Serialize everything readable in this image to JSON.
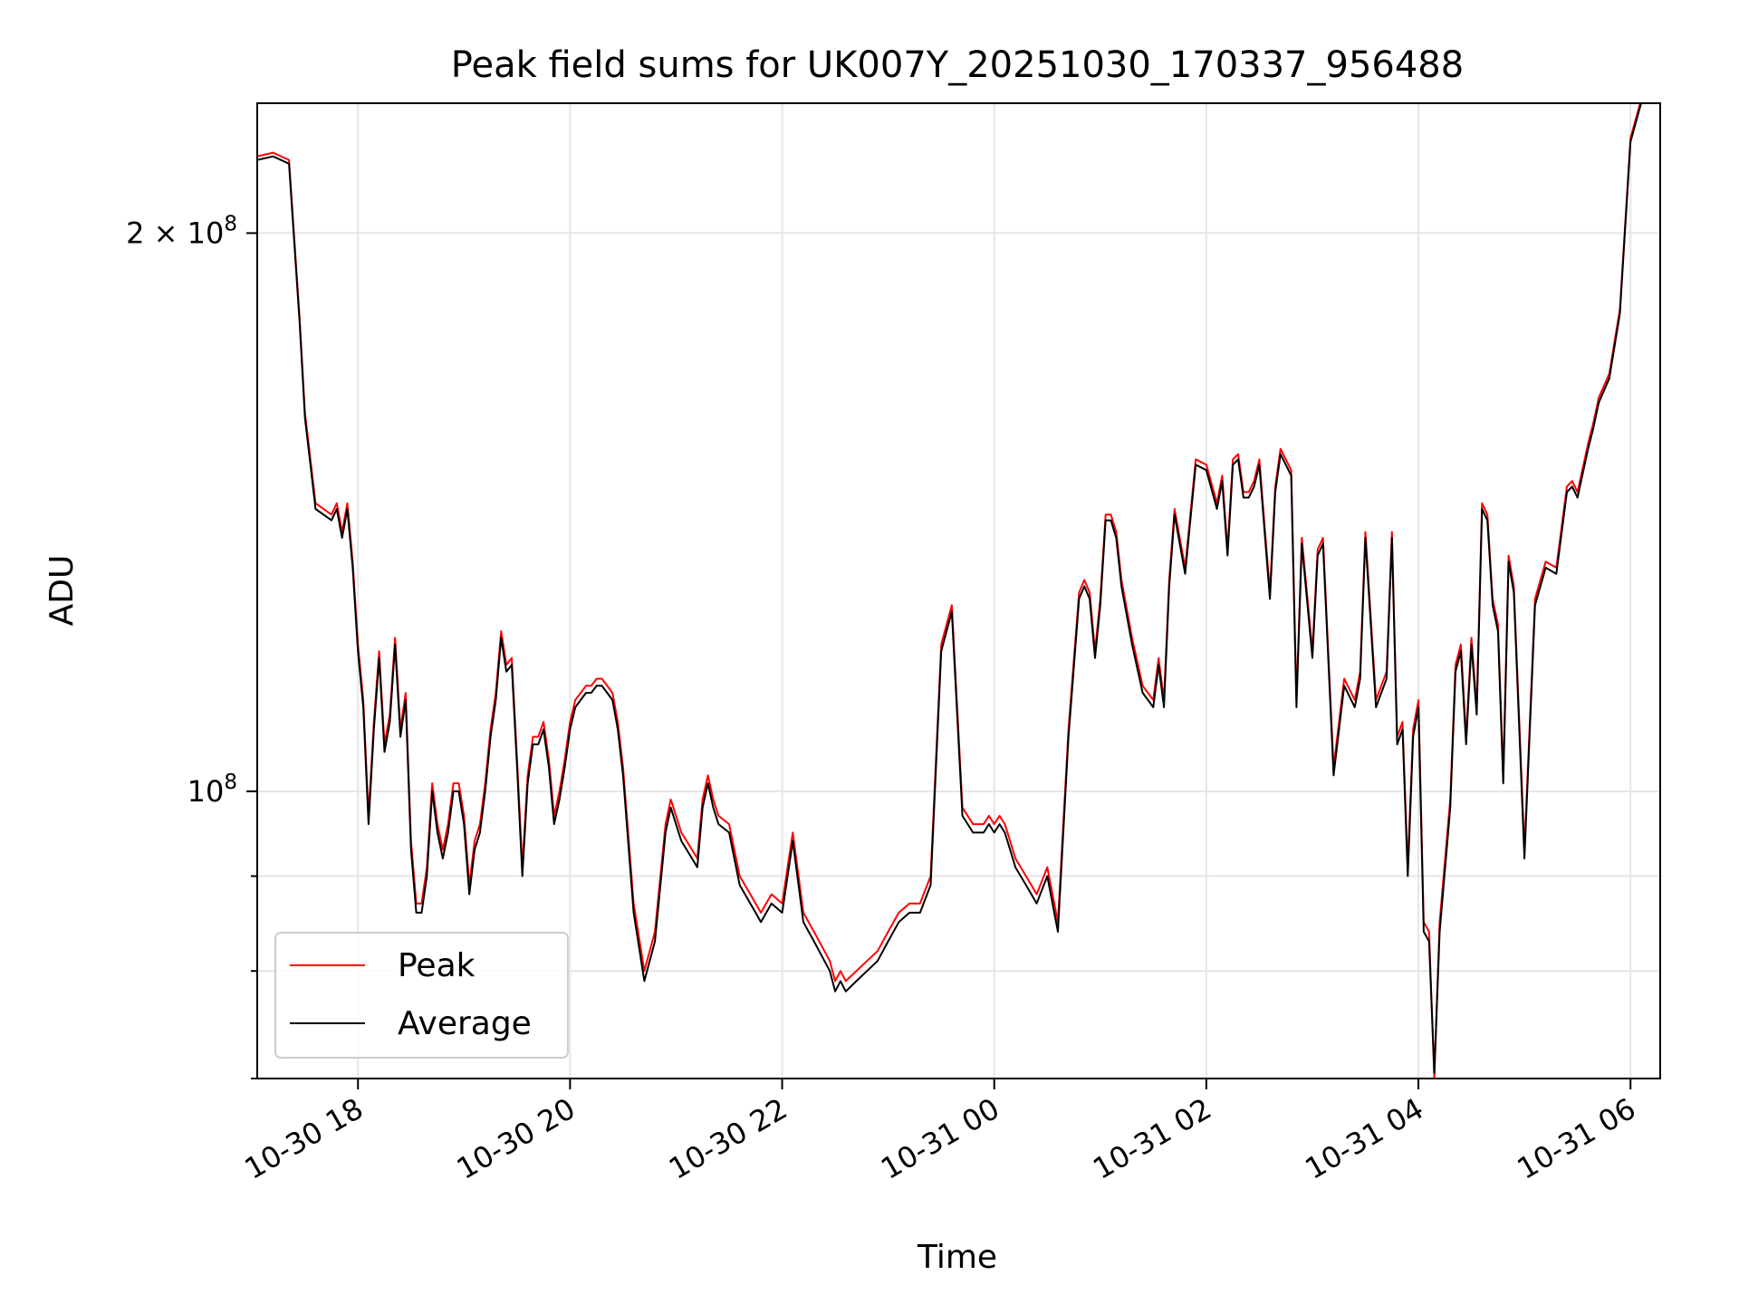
{
  "chart_data": {
    "type": "line",
    "title": "Peak field sums for UK007Y_20251030_170337_956488",
    "xlabel": "Time",
    "ylabel": "ADU",
    "y_scale": "log",
    "grid": true,
    "legend_position": "lower-left",
    "xlim_hours": [
      17.05,
      30.28
    ],
    "ylim": [
      70000000,
      235000000
    ],
    "x_ticks": [
      {
        "hour": 18,
        "label": "10-30 18"
      },
      {
        "hour": 20,
        "label": "10-30 20"
      },
      {
        "hour": 22,
        "label": "10-30 22"
      },
      {
        "hour": 24,
        "label": "10-31 00"
      },
      {
        "hour": 26,
        "label": "10-31 02"
      },
      {
        "hour": 28,
        "label": "10-31 04"
      },
      {
        "hour": 30,
        "label": "10-31 06"
      }
    ],
    "y_major_ticks": [
      {
        "value": 100000000,
        "base": "10",
        "exp": "8"
      },
      {
        "value": 200000000,
        "base": "2 × 10",
        "exp": "8"
      }
    ],
    "y_minor_ticks": [
      70000000,
      80000000,
      90000000
    ],
    "x_hours": [
      17.05,
      17.2,
      17.35,
      17.45,
      17.5,
      17.6,
      17.75,
      17.8,
      17.85,
      17.9,
      17.95,
      18.0,
      18.05,
      18.1,
      18.15,
      18.2,
      18.25,
      18.3,
      18.35,
      18.4,
      18.45,
      18.5,
      18.55,
      18.6,
      18.65,
      18.7,
      18.75,
      18.8,
      18.85,
      18.9,
      18.95,
      19.0,
      19.05,
      19.1,
      19.15,
      19.2,
      19.25,
      19.3,
      19.35,
      19.4,
      19.45,
      19.5,
      19.55,
      19.6,
      19.65,
      19.7,
      19.75,
      19.8,
      19.85,
      19.9,
      19.95,
      20.0,
      20.05,
      20.1,
      20.15,
      20.2,
      20.25,
      20.3,
      20.35,
      20.4,
      20.45,
      20.5,
      20.6,
      20.7,
      20.8,
      20.9,
      20.95,
      21.05,
      21.1,
      21.2,
      21.25,
      21.3,
      21.35,
      21.4,
      21.5,
      21.6,
      21.7,
      21.75,
      21.8,
      21.9,
      22.0,
      22.1,
      22.2,
      22.3,
      22.45,
      22.5,
      22.55,
      22.6,
      22.7,
      22.8,
      22.9,
      23.0,
      23.1,
      23.2,
      23.3,
      23.4,
      23.5,
      23.6,
      23.7,
      23.8,
      23.9,
      23.95,
      24.0,
      24.05,
      24.1,
      24.15,
      24.2,
      24.3,
      24.4,
      24.5,
      24.6,
      24.7,
      24.8,
      24.85,
      24.9,
      24.95,
      25.0,
      25.05,
      25.1,
      25.15,
      25.2,
      25.3,
      25.4,
      25.5,
      25.55,
      25.6,
      25.65,
      25.7,
      25.8,
      25.9,
      26.0,
      26.1,
      26.15,
      26.2,
      26.25,
      26.3,
      26.35,
      26.4,
      26.45,
      26.5,
      26.6,
      26.65,
      26.7,
      26.8,
      26.85,
      26.9,
      27.0,
      27.05,
      27.1,
      27.2,
      27.3,
      27.4,
      27.45,
      27.5,
      27.6,
      27.7,
      27.75,
      27.8,
      27.85,
      27.9,
      27.95,
      28.0,
      28.05,
      28.1,
      28.15,
      28.2,
      28.3,
      28.35,
      28.4,
      28.45,
      28.5,
      28.55,
      28.6,
      28.65,
      28.7,
      28.75,
      28.8,
      28.85,
      28.9,
      29.0,
      29.1,
      29.2,
      29.3,
      29.4,
      29.45,
      29.5,
      29.6,
      29.65,
      29.7,
      29.8,
      29.9,
      30.0,
      30.1,
      30.2,
      30.28
    ],
    "series": [
      {
        "name": "Peak",
        "color": "#ff0000",
        "values": [
          220000000,
          221000000,
          219000000,
          180000000,
          160000000,
          143000000,
          141000000,
          143000000,
          138000000,
          143000000,
          133000000,
          120000000,
          112000000,
          97000000,
          109000000,
          119000000,
          106000000,
          110000000,
          121000000,
          108000000,
          113000000,
          94000000,
          87000000,
          87000000,
          91000000,
          101000000,
          96000000,
          93000000,
          96000000,
          101000000,
          101000000,
          97000000,
          89000000,
          94000000,
          96000000,
          101000000,
          108000000,
          113000000,
          122000000,
          117000000,
          118000000,
          104000000,
          91000000,
          102000000,
          107000000,
          107000000,
          109000000,
          104000000,
          97000000,
          100000000,
          104000000,
          109000000,
          112000000,
          113000000,
          114000000,
          114000000,
          115000000,
          115000000,
          114000000,
          113000000,
          109000000,
          103000000,
          87000000,
          80000000,
          84000000,
          96000000,
          99000000,
          95000000,
          94000000,
          92000000,
          99000000,
          102000000,
          99000000,
          97000000,
          96000000,
          90000000,
          88000000,
          87000000,
          86000000,
          88000000,
          87000000,
          95000000,
          86000000,
          84000000,
          81000000,
          79000000,
          80000000,
          79000000,
          80000000,
          81000000,
          82000000,
          84000000,
          86000000,
          87000000,
          87000000,
          90000000,
          120000000,
          126000000,
          98000000,
          96000000,
          96000000,
          97000000,
          96000000,
          97000000,
          96000000,
          94000000,
          92000000,
          90000000,
          88000000,
          91000000,
          85000000,
          108000000,
          128000000,
          130000000,
          128000000,
          119000000,
          127000000,
          141000000,
          141000000,
          138000000,
          130000000,
          121000000,
          114000000,
          112000000,
          118000000,
          112000000,
          130000000,
          142000000,
          132000000,
          151000000,
          150000000,
          143000000,
          148000000,
          135000000,
          151000000,
          152000000,
          145000000,
          145000000,
          147000000,
          151000000,
          128000000,
          146000000,
          153000000,
          149000000,
          112000000,
          137000000,
          119000000,
          135000000,
          137000000,
          103000000,
          115000000,
          112000000,
          116000000,
          138000000,
          112000000,
          116000000,
          138000000,
          107000000,
          109000000,
          91000000,
          108000000,
          112000000,
          85000000,
          84000000,
          70000000,
          85000000,
          99000000,
          117000000,
          120000000,
          107000000,
          121000000,
          111000000,
          143000000,
          141000000,
          127000000,
          123000000,
          102000000,
          134000000,
          129000000,
          93000000,
          127000000,
          133000000,
          132000000,
          146000000,
          147000000,
          145000000,
          154000000,
          158000000,
          163000000,
          168000000,
          182000000,
          225000000,
          236000000
        ]
      },
      {
        "name": "Average",
        "color": "#000000",
        "values": [
          219000000,
          220000000,
          218000000,
          179000000,
          159000000,
          142000000,
          140000000,
          142000000,
          137000000,
          142000000,
          132000000,
          119000000,
          111000000,
          96000000,
          108000000,
          118000000,
          105000000,
          109000000,
          120000000,
          107000000,
          112000000,
          93000000,
          86000000,
          86000000,
          90000000,
          100000000,
          95000000,
          92000000,
          95000000,
          100000000,
          100000000,
          96000000,
          88000000,
          93000000,
          95000000,
          100000000,
          107000000,
          112000000,
          121000000,
          116000000,
          117000000,
          103000000,
          90000000,
          101000000,
          106000000,
          106000000,
          108000000,
          103000000,
          96000000,
          99000000,
          103000000,
          108000000,
          111000000,
          112000000,
          113000000,
          113000000,
          114000000,
          114000000,
          113000000,
          112000000,
          108000000,
          102000000,
          86000000,
          79000000,
          83000000,
          95000000,
          98000000,
          94000000,
          93000000,
          91000000,
          98000000,
          101000000,
          98000000,
          96000000,
          95000000,
          89000000,
          87000000,
          86000000,
          85000000,
          87000000,
          86000000,
          94000000,
          85000000,
          83000000,
          80000000,
          78000000,
          79000000,
          78000000,
          79000000,
          80000000,
          81000000,
          83000000,
          85000000,
          86000000,
          86000000,
          89000000,
          119000000,
          125000000,
          97000000,
          95000000,
          95000000,
          96000000,
          95000000,
          96000000,
          95000000,
          93000000,
          91000000,
          89000000,
          87000000,
          90000000,
          84000000,
          107000000,
          127000000,
          129000000,
          127000000,
          118000000,
          126000000,
          140000000,
          140000000,
          137000000,
          129000000,
          120000000,
          113000000,
          111000000,
          117000000,
          111000000,
          129000000,
          141000000,
          131000000,
          150000000,
          149000000,
          142000000,
          147000000,
          134000000,
          150000000,
          151000000,
          144000000,
          144000000,
          146000000,
          150000000,
          127000000,
          145000000,
          152000000,
          148000000,
          111000000,
          136000000,
          118000000,
          134000000,
          136000000,
          102000000,
          114000000,
          111000000,
          115000000,
          137000000,
          111000000,
          115000000,
          137000000,
          106000000,
          108000000,
          90000000,
          107000000,
          111000000,
          84000000,
          83000000,
          70500000,
          84000000,
          98000000,
          116000000,
          119000000,
          106000000,
          120000000,
          110000000,
          142000000,
          140000000,
          126000000,
          122000000,
          101000000,
          133000000,
          128000000,
          92000000,
          126000000,
          132000000,
          131000000,
          145000000,
          146000000,
          144000000,
          153000000,
          157000000,
          162000000,
          167000000,
          181000000,
          224000000,
          235000000
        ]
      }
    ]
  }
}
